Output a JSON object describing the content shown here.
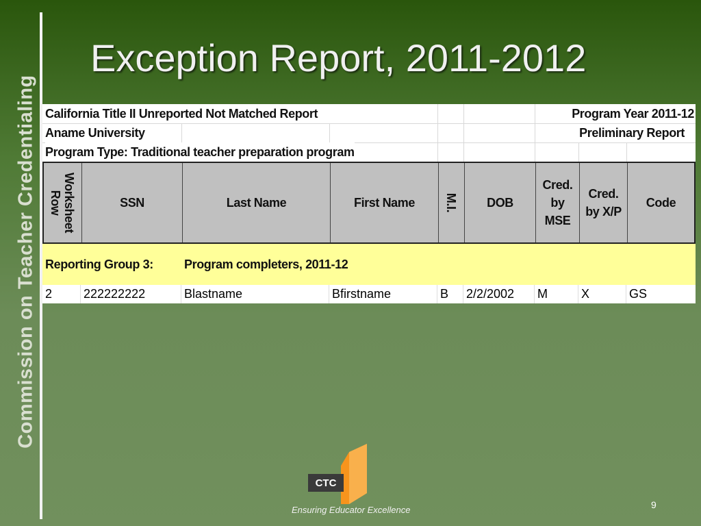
{
  "sidebar": "Commission on Teacher Credentialing",
  "title": "Exception Report, 2011-2012",
  "report": {
    "name": "California Title II Unreported Not Matched Report",
    "program_year": "Program Year 2011-12",
    "institution": "Aname University",
    "status": "Preliminary Report",
    "program_type": "Program Type: Traditional teacher preparation program"
  },
  "table": {
    "columns": [
      "Worksheet Row",
      "SSN",
      "Last Name",
      "First Name",
      "M.I.",
      "DOB",
      "Cred. by MSE",
      "Cred. by X/P",
      "Code"
    ],
    "group": {
      "label": "Reporting Group 3:",
      "name": "Program completers, 2011-12"
    },
    "rows": [
      [
        "2",
        "222222222",
        "Blastname",
        "Bfirstname",
        "B",
        "2/2/2002",
        "M",
        "X",
        "GS"
      ]
    ]
  },
  "footer": {
    "logo": "CTC",
    "tagline": "Ensuring Educator Excellence",
    "page_number": "9"
  }
}
